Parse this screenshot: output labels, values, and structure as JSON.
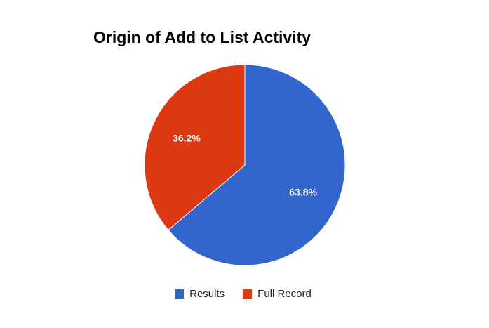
{
  "chart_data": {
    "type": "pie",
    "title": "Origin of Add to List Activity",
    "categories": [
      "Results",
      "Full Record"
    ],
    "values": [
      63.8,
      36.2
    ],
    "value_labels": [
      "63.8%",
      "36.2%"
    ],
    "colors": [
      "#3366cc",
      "#dc3912"
    ],
    "legend_position": "bottom",
    "start_angle_deg": 0,
    "direction": "clockwise"
  },
  "legend": {
    "items": [
      {
        "label": "Results",
        "color": "#3366cc"
      },
      {
        "label": "Full Record",
        "color": "#dc3912"
      }
    ]
  }
}
